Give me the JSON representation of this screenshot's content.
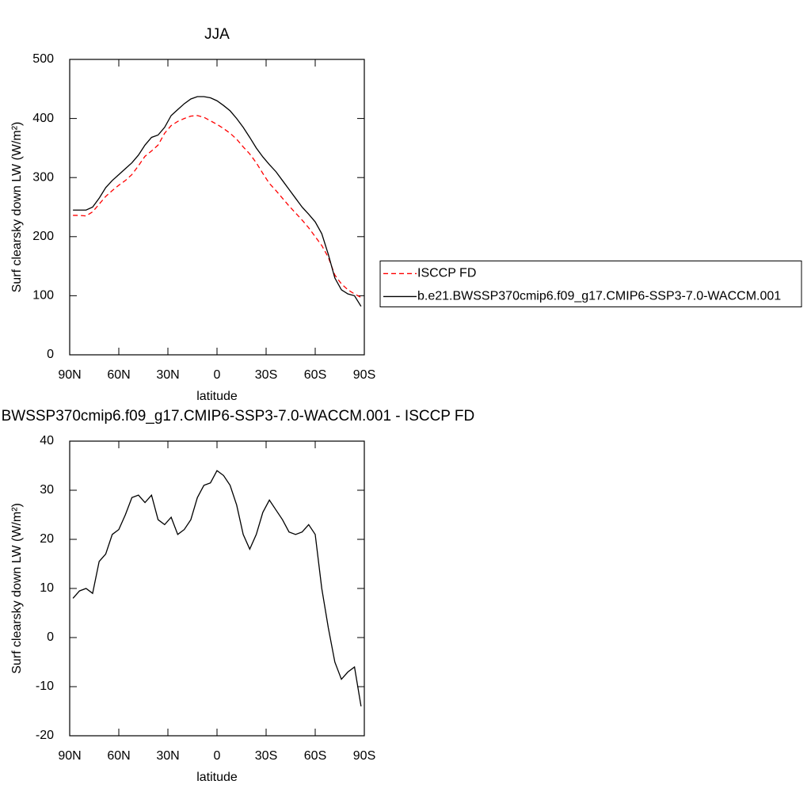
{
  "chart_data": [
    {
      "type": "line",
      "title": "JJA",
      "x_label": "latitude",
      "y_label": "Surf clearsky down LW (W/m²)",
      "x": [
        88,
        84,
        80,
        76,
        72,
        68,
        64,
        60,
        56,
        52,
        48,
        44,
        40,
        36,
        32,
        28,
        24,
        20,
        16,
        12,
        8,
        4,
        0,
        -4,
        -8,
        -12,
        -16,
        -20,
        -24,
        -28,
        -32,
        -36,
        -40,
        -44,
        -48,
        -52,
        -56,
        -60,
        -64,
        -68,
        -72,
        -76,
        -80,
        -84,
        -88
      ],
      "series": [
        {
          "name": "ISCCP FD",
          "color": "#ff0000",
          "dashed": true,
          "values": [
            236,
            236,
            235,
            242,
            255,
            268,
            278,
            287,
            295,
            305,
            320,
            336,
            345,
            355,
            375,
            388,
            395,
            400,
            404,
            405,
            402,
            396,
            390,
            383,
            375,
            365,
            352,
            340,
            325,
            307,
            290,
            278,
            265,
            252,
            240,
            228,
            215,
            200,
            185,
            165,
            135,
            120,
            110,
            103,
            97
          ]
        },
        {
          "name": "b.e21.BWSSP370cmip6.f09_g17.CMIP6-SSP3-7.0-WACCM.001",
          "color": "#000000",
          "dashed": false,
          "values": [
            245,
            245,
            245,
            250,
            265,
            283,
            295,
            305,
            315,
            325,
            338,
            355,
            368,
            372,
            385,
            405,
            415,
            425,
            433,
            437,
            437,
            435,
            430,
            422,
            413,
            400,
            385,
            368,
            350,
            335,
            322,
            310,
            295,
            280,
            265,
            250,
            238,
            225,
            205,
            170,
            130,
            110,
            103,
            100,
            82
          ]
        }
      ],
      "xlim": [
        90,
        -90
      ],
      "xticks": [
        {
          "value": 90,
          "label": "90N"
        },
        {
          "value": 60,
          "label": "60N"
        },
        {
          "value": 30,
          "label": "30N"
        },
        0,
        {
          "value": -30,
          "label": "30S"
        },
        {
          "value": -60,
          "label": "60S"
        },
        {
          "value": -90,
          "label": "90S"
        }
      ],
      "ylim": [
        0,
        500
      ],
      "yticks": [
        0,
        100,
        200,
        300,
        400,
        500
      ],
      "legend": "right"
    },
    {
      "type": "line",
      "title": "b.e21.BWSSP370cmip6.f09_g17.CMIP6-SSP3-7.0-WACCM.001 - ISCCP FD",
      "x_label": "latitude",
      "y_label": "Surf clearsky down LW (W/m²)",
      "x": [
        88,
        84,
        80,
        76,
        72,
        68,
        64,
        60,
        56,
        52,
        48,
        44,
        40,
        36,
        32,
        28,
        24,
        20,
        16,
        12,
        8,
        4,
        0,
        -4,
        -8,
        -12,
        -16,
        -20,
        -24,
        -28,
        -32,
        -36,
        -40,
        -44,
        -48,
        -52,
        -56,
        -60,
        -64,
        -68,
        -72,
        -76,
        -80,
        -84,
        -88
      ],
      "series": [
        {
          "color": "#000000",
          "dashed": false,
          "values": [
            8,
            9.5,
            10,
            9,
            15.5,
            17,
            21,
            22,
            25,
            28.5,
            29,
            27.5,
            29,
            24,
            23,
            24.5,
            21,
            22,
            24,
            28.5,
            31,
            31.5,
            34,
            33,
            31,
            27,
            21,
            18,
            21,
            25.5,
            28,
            26,
            24,
            21.5,
            21,
            21.5,
            23,
            21,
            10,
            2,
            -5,
            -8.5,
            -7,
            -6,
            -14
          ]
        }
      ],
      "xlim": [
        90,
        -90
      ],
      "xticks": [
        {
          "value": 90,
          "label": "90N"
        },
        {
          "value": 60,
          "label": "60N"
        },
        {
          "value": 30,
          "label": "30N"
        },
        0,
        {
          "value": -30,
          "label": "30S"
        },
        {
          "value": -60,
          "label": "60S"
        },
        {
          "value": -90,
          "label": "90S"
        }
      ],
      "ylim": [
        -20,
        40
      ],
      "yticks": [
        -20,
        -10,
        0,
        10,
        20,
        30,
        40
      ]
    }
  ]
}
